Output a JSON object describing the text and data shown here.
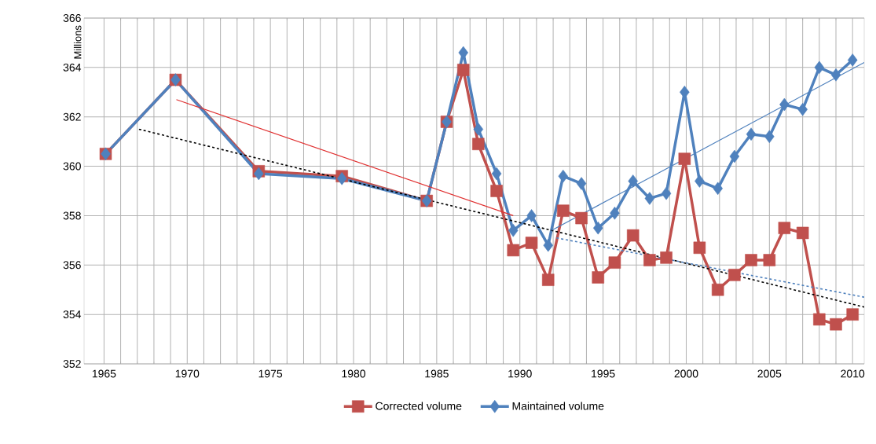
{
  "chart_data": {
    "type": "line",
    "ylabel": "Millions",
    "xlim": [
      1963.8,
      2010.7
    ],
    "xticks": [
      1965,
      1970,
      1975,
      1980,
      1985,
      1990,
      1995,
      2000,
      2005,
      2010
    ],
    "ylim": [
      352,
      366
    ],
    "yticks": [
      352,
      354,
      356,
      358,
      360,
      362,
      364,
      366
    ],
    "grid": true,
    "legend": "bottom",
    "line_style": "solid",
    "series": [
      {
        "name": "Corrected volume",
        "color": "#c0504d",
        "marker": "square",
        "x": [
          1965.1,
          1969.3,
          1974.3,
          1979.3,
          1984.4,
          1985.6,
          1986.6,
          1987.5,
          1988.6,
          1989.6,
          1990.7,
          1991.7,
          1992.6,
          1993.7,
          1994.7,
          1995.7,
          1996.8,
          1997.8,
          1998.8,
          1999.9,
          2000.8,
          2001.9,
          2002.9,
          2003.9,
          2005.0,
          2005.9,
          2007.0,
          2008.0,
          2009.0,
          2010.0
        ],
        "values": [
          360.5,
          363.5,
          359.8,
          359.6,
          358.6,
          361.8,
          363.9,
          360.9,
          359.0,
          356.6,
          356.9,
          355.4,
          358.2,
          357.9,
          355.5,
          356.1,
          357.2,
          356.2,
          356.3,
          360.3,
          356.7,
          355.0,
          355.6,
          356.2,
          356.2,
          357.5,
          357.3,
          353.8,
          353.6,
          354.0
        ]
      },
      {
        "name": "Maintained volume",
        "color": "#4f81bd",
        "marker": "diamond",
        "x": [
          1965.1,
          1969.3,
          1974.3,
          1979.3,
          1984.4,
          1985.6,
          1986.6,
          1987.5,
          1988.6,
          1989.6,
          1990.7,
          1991.7,
          1992.6,
          1993.7,
          1994.7,
          1995.7,
          1996.8,
          1997.8,
          1998.8,
          1999.9,
          2000.8,
          2001.9,
          2002.9,
          2003.9,
          2005.0,
          2005.9,
          2007.0,
          2008.0,
          2009.0,
          2010.0
        ],
        "values": [
          360.5,
          363.5,
          359.7,
          359.5,
          358.6,
          361.8,
          364.6,
          361.5,
          359.7,
          357.4,
          358.0,
          356.8,
          359.6,
          359.3,
          357.5,
          358.1,
          359.4,
          358.7,
          358.9,
          363.0,
          359.4,
          359.1,
          360.4,
          361.3,
          361.2,
          362.5,
          362.3,
          364.0,
          363.7,
          364.3
        ]
      },
      {
        "color": "#e03030",
        "marker": "none",
        "x": [
          1969.35,
          1989.6
        ],
        "values": [
          362.7,
          358.0
        ]
      },
      {
        "color": "#000000",
        "marker": "none",
        "line_style": "dashed",
        "x": [
          1967.1,
          2010.7
        ],
        "values": [
          361.5,
          354.3
        ]
      },
      {
        "color": "#4f81bd",
        "marker": "none",
        "line_style": "dashed",
        "x": [
          1992.2,
          2010.7
        ],
        "values": [
          357.1,
          354.7
        ]
      },
      {
        "color": "#4f81bd",
        "marker": "none",
        "x": [
          1991.9,
          2010.7
        ],
        "values": [
          357.4,
          364.2
        ]
      }
    ]
  }
}
